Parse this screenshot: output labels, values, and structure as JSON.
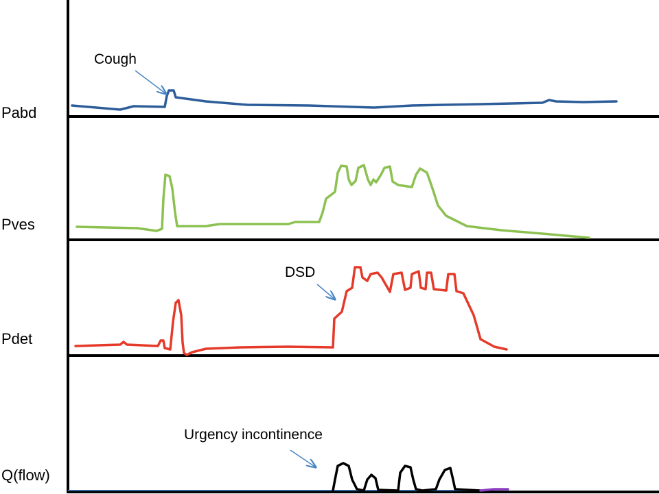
{
  "traces": [
    {
      "label": "Pabd"
    },
    {
      "label": "Pves"
    },
    {
      "label": "Pdet"
    },
    {
      "label": "Q(flow)"
    }
  ],
  "annotations": [
    {
      "text": "Cough"
    },
    {
      "text": "DSD"
    },
    {
      "text": "Urgency incontinence"
    }
  ]
}
